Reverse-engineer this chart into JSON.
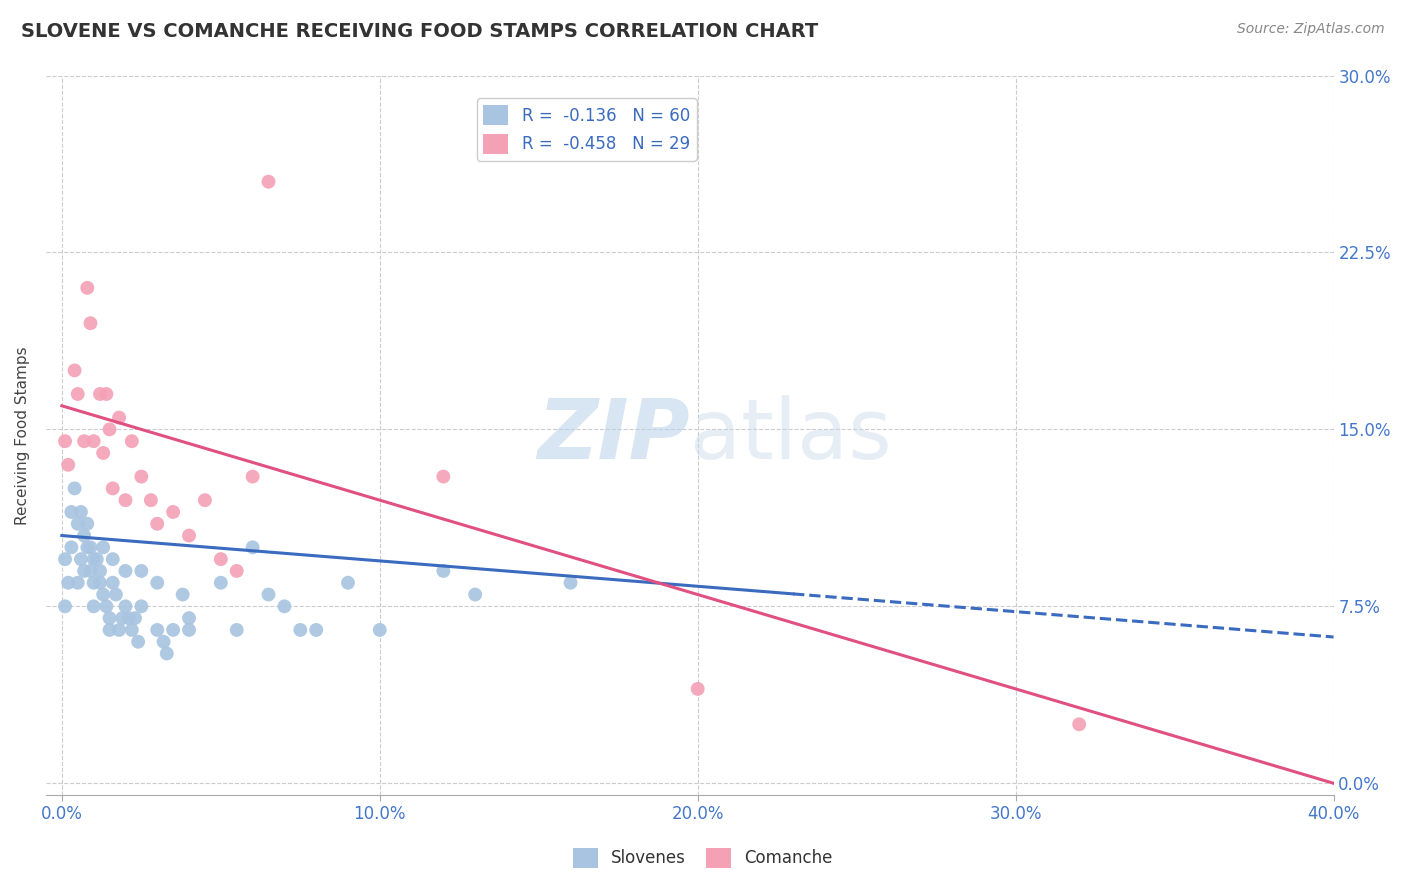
{
  "title": "SLOVENE VS COMANCHE RECEIVING FOOD STAMPS CORRELATION CHART",
  "source": "Source: ZipAtlas.com",
  "ylabel": "Receiving Food Stamps",
  "xlabel_ticks": [
    "0.0%",
    "10.0%",
    "20.0%",
    "30.0%",
    "40.0%"
  ],
  "xlabel_vals": [
    0.0,
    0.1,
    0.2,
    0.3,
    0.4
  ],
  "ylabel_ticks": [
    "0.0%",
    "7.5%",
    "15.0%",
    "22.5%",
    "30.0%"
  ],
  "ylabel_vals": [
    0.0,
    0.075,
    0.15,
    0.225,
    0.3
  ],
  "xlim": [
    -0.005,
    0.4
  ],
  "ylim": [
    -0.005,
    0.3
  ],
  "slovene_color": "#a8c4e0",
  "comanche_color": "#f4a0b5",
  "slovene_line_color": "#3a6bbf",
  "comanche_line_color": "#e05080",
  "legend_text_color": "#3a6bbf",
  "watermark_zip": "ZIP",
  "watermark_atlas": "atlas",
  "slovene_R": -0.136,
  "slovene_N": 60,
  "comanche_R": -0.458,
  "comanche_N": 29,
  "slovene_points_x": [
    0.001,
    0.001,
    0.002,
    0.003,
    0.003,
    0.004,
    0.005,
    0.005,
    0.006,
    0.006,
    0.007,
    0.007,
    0.008,
    0.008,
    0.009,
    0.009,
    0.01,
    0.01,
    0.01,
    0.011,
    0.012,
    0.012,
    0.013,
    0.013,
    0.014,
    0.015,
    0.015,
    0.016,
    0.016,
    0.017,
    0.018,
    0.019,
    0.02,
    0.02,
    0.021,
    0.022,
    0.023,
    0.024,
    0.025,
    0.025,
    0.03,
    0.03,
    0.032,
    0.033,
    0.035,
    0.038,
    0.04,
    0.04,
    0.05,
    0.055,
    0.06,
    0.065,
    0.07,
    0.075,
    0.08,
    0.09,
    0.1,
    0.12,
    0.13,
    0.16
  ],
  "slovene_points_y": [
    0.095,
    0.075,
    0.085,
    0.115,
    0.1,
    0.125,
    0.11,
    0.085,
    0.115,
    0.095,
    0.105,
    0.09,
    0.1,
    0.11,
    0.09,
    0.1,
    0.095,
    0.085,
    0.075,
    0.095,
    0.09,
    0.085,
    0.1,
    0.08,
    0.075,
    0.065,
    0.07,
    0.095,
    0.085,
    0.08,
    0.065,
    0.07,
    0.09,
    0.075,
    0.07,
    0.065,
    0.07,
    0.06,
    0.09,
    0.075,
    0.085,
    0.065,
    0.06,
    0.055,
    0.065,
    0.08,
    0.07,
    0.065,
    0.085,
    0.065,
    0.1,
    0.08,
    0.075,
    0.065,
    0.065,
    0.085,
    0.065,
    0.09,
    0.08,
    0.085
  ],
  "comanche_points_x": [
    0.001,
    0.002,
    0.004,
    0.005,
    0.007,
    0.008,
    0.009,
    0.01,
    0.012,
    0.013,
    0.014,
    0.015,
    0.016,
    0.018,
    0.02,
    0.022,
    0.025,
    0.028,
    0.03,
    0.035,
    0.04,
    0.045,
    0.05,
    0.055,
    0.06,
    0.065,
    0.12,
    0.2,
    0.32
  ],
  "comanche_points_y": [
    0.145,
    0.135,
    0.175,
    0.165,
    0.145,
    0.21,
    0.195,
    0.145,
    0.165,
    0.14,
    0.165,
    0.15,
    0.125,
    0.155,
    0.12,
    0.145,
    0.13,
    0.12,
    0.11,
    0.115,
    0.105,
    0.12,
    0.095,
    0.09,
    0.13,
    0.255,
    0.13,
    0.04,
    0.025
  ],
  "background_color": "#ffffff",
  "grid_color": "#cccccc",
  "title_color": "#333333",
  "axis_label_color": "#444444",
  "tick_label_color": "#4477cc"
}
